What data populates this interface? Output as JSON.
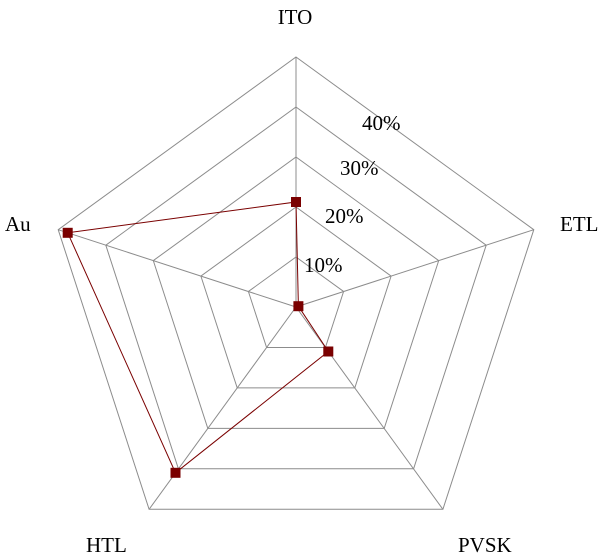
{
  "chart_data": {
    "type": "radar",
    "axes": [
      "ITO",
      "ETL",
      "PVSK",
      "HTL",
      "Au"
    ],
    "rlim": [
      0,
      50
    ],
    "ring_values": [
      10,
      20,
      30,
      40,
      50
    ],
    "tick_labels": [
      "10%",
      "20%",
      "30%",
      "40%"
    ],
    "grid": true,
    "legend": "none",
    "series": [
      {
        "values": [
          21,
          0.5,
          11,
          41,
          48
        ],
        "color": "#7a0000"
      }
    ]
  }
}
